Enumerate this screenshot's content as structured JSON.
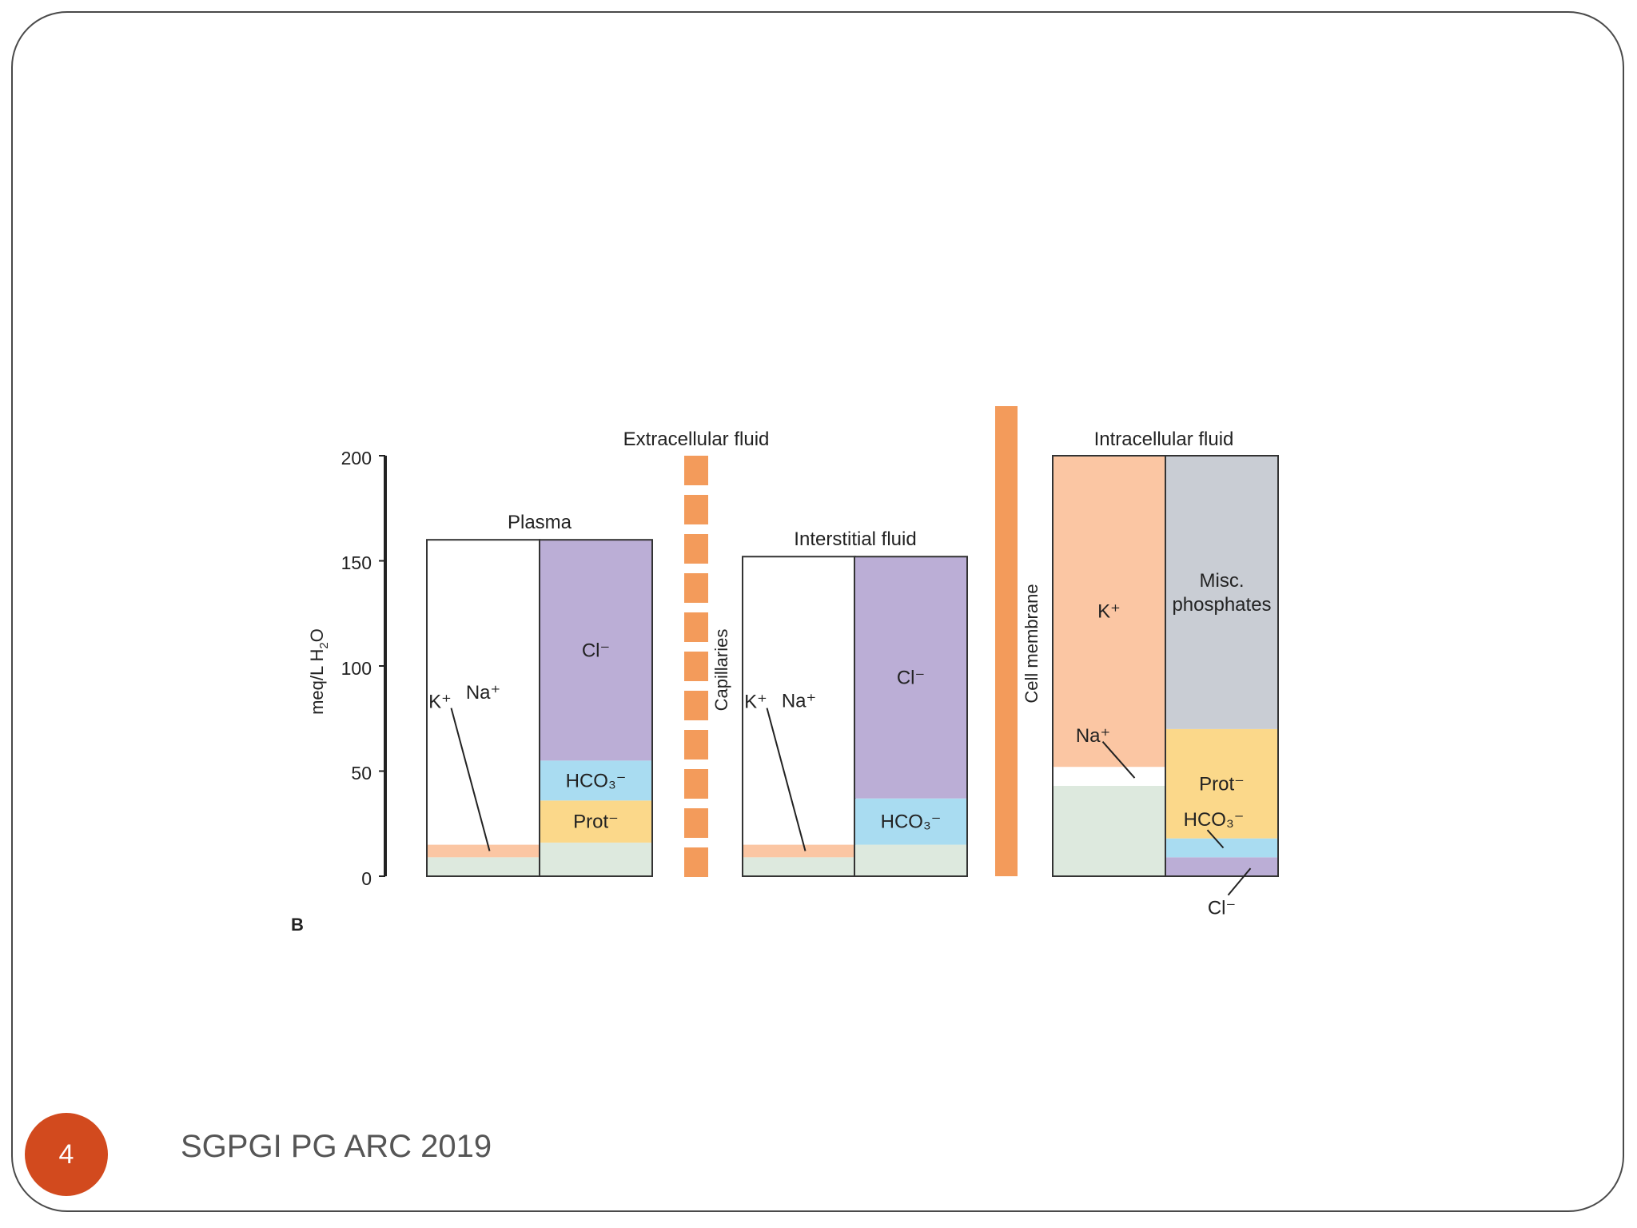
{
  "slide": {
    "page_number": "4",
    "footer": "SGPGI PG ARC 2019"
  },
  "colors": {
    "Na": "#ffffff",
    "K": "#fbc6a3",
    "Cl": "#bbaed6",
    "HCO3": "#a9dcf1",
    "Prot": "#fbd88a",
    "Misc": "#c9cdd4",
    "Other": "#dde9de",
    "Capillaries": "#f39b5b",
    "Membrane": "#f39b5b",
    "Axis": "#222222"
  },
  "chart_data": {
    "type": "bar",
    "ylabel_main": "meq/L H",
    "ylabel_sub": "2",
    "ylabel_end": "O",
    "yticks": [
      "200",
      "150",
      "100",
      "50",
      "0"
    ],
    "ylim": [
      0,
      200
    ],
    "panel_letter": "B",
    "region_labels": {
      "extracellular": "Extracellular fluid",
      "intracellular": "Intracellular fluid",
      "capillaries": "Capillaries",
      "cell_membrane": "Cell membrane"
    },
    "groups": [
      {
        "name": "Plasma",
        "cations": [
          {
            "label": "",
            "key": "Other",
            "value": 9
          },
          {
            "label": "K⁺",
            "key": "K",
            "value": 6
          },
          {
            "label": "Na⁺",
            "key": "Na",
            "value": 145
          }
        ],
        "anions": [
          {
            "label": "",
            "key": "Other",
            "value": 16
          },
          {
            "label": "Prot⁻",
            "key": "Prot",
            "value": 20
          },
          {
            "label": "HCO₃⁻",
            "key": "HCO3",
            "value": 19
          },
          {
            "label": "Cl⁻",
            "key": "Cl",
            "value": 105
          }
        ]
      },
      {
        "name": "Interstitial fluid",
        "cations": [
          {
            "label": "",
            "key": "Other",
            "value": 9
          },
          {
            "label": "K⁺",
            "key": "K",
            "value": 6
          },
          {
            "label": "Na⁺",
            "key": "Na",
            "value": 137
          }
        ],
        "anions": [
          {
            "label": "",
            "key": "Other",
            "value": 15
          },
          {
            "label": "HCO₃⁻",
            "key": "HCO3",
            "value": 22
          },
          {
            "label": "Cl⁻",
            "key": "Cl",
            "value": 115
          }
        ]
      },
      {
        "name": "Intracellular fluid",
        "cations": [
          {
            "label": "",
            "key": "Other",
            "value": 43
          },
          {
            "label": "Na⁺",
            "key": "Na",
            "value": 9
          },
          {
            "label": "K⁺",
            "key": "K",
            "value": 148
          }
        ],
        "anions": [
          {
            "label": "Cl⁻",
            "key": "Cl",
            "value": 9
          },
          {
            "label": "HCO₃⁻",
            "key": "HCO3",
            "value": 9
          },
          {
            "label": "Prot⁻",
            "key": "Prot",
            "value": 52
          },
          {
            "label": "Misc. phosphates",
            "key": "Misc",
            "value": 130
          }
        ]
      }
    ]
  }
}
